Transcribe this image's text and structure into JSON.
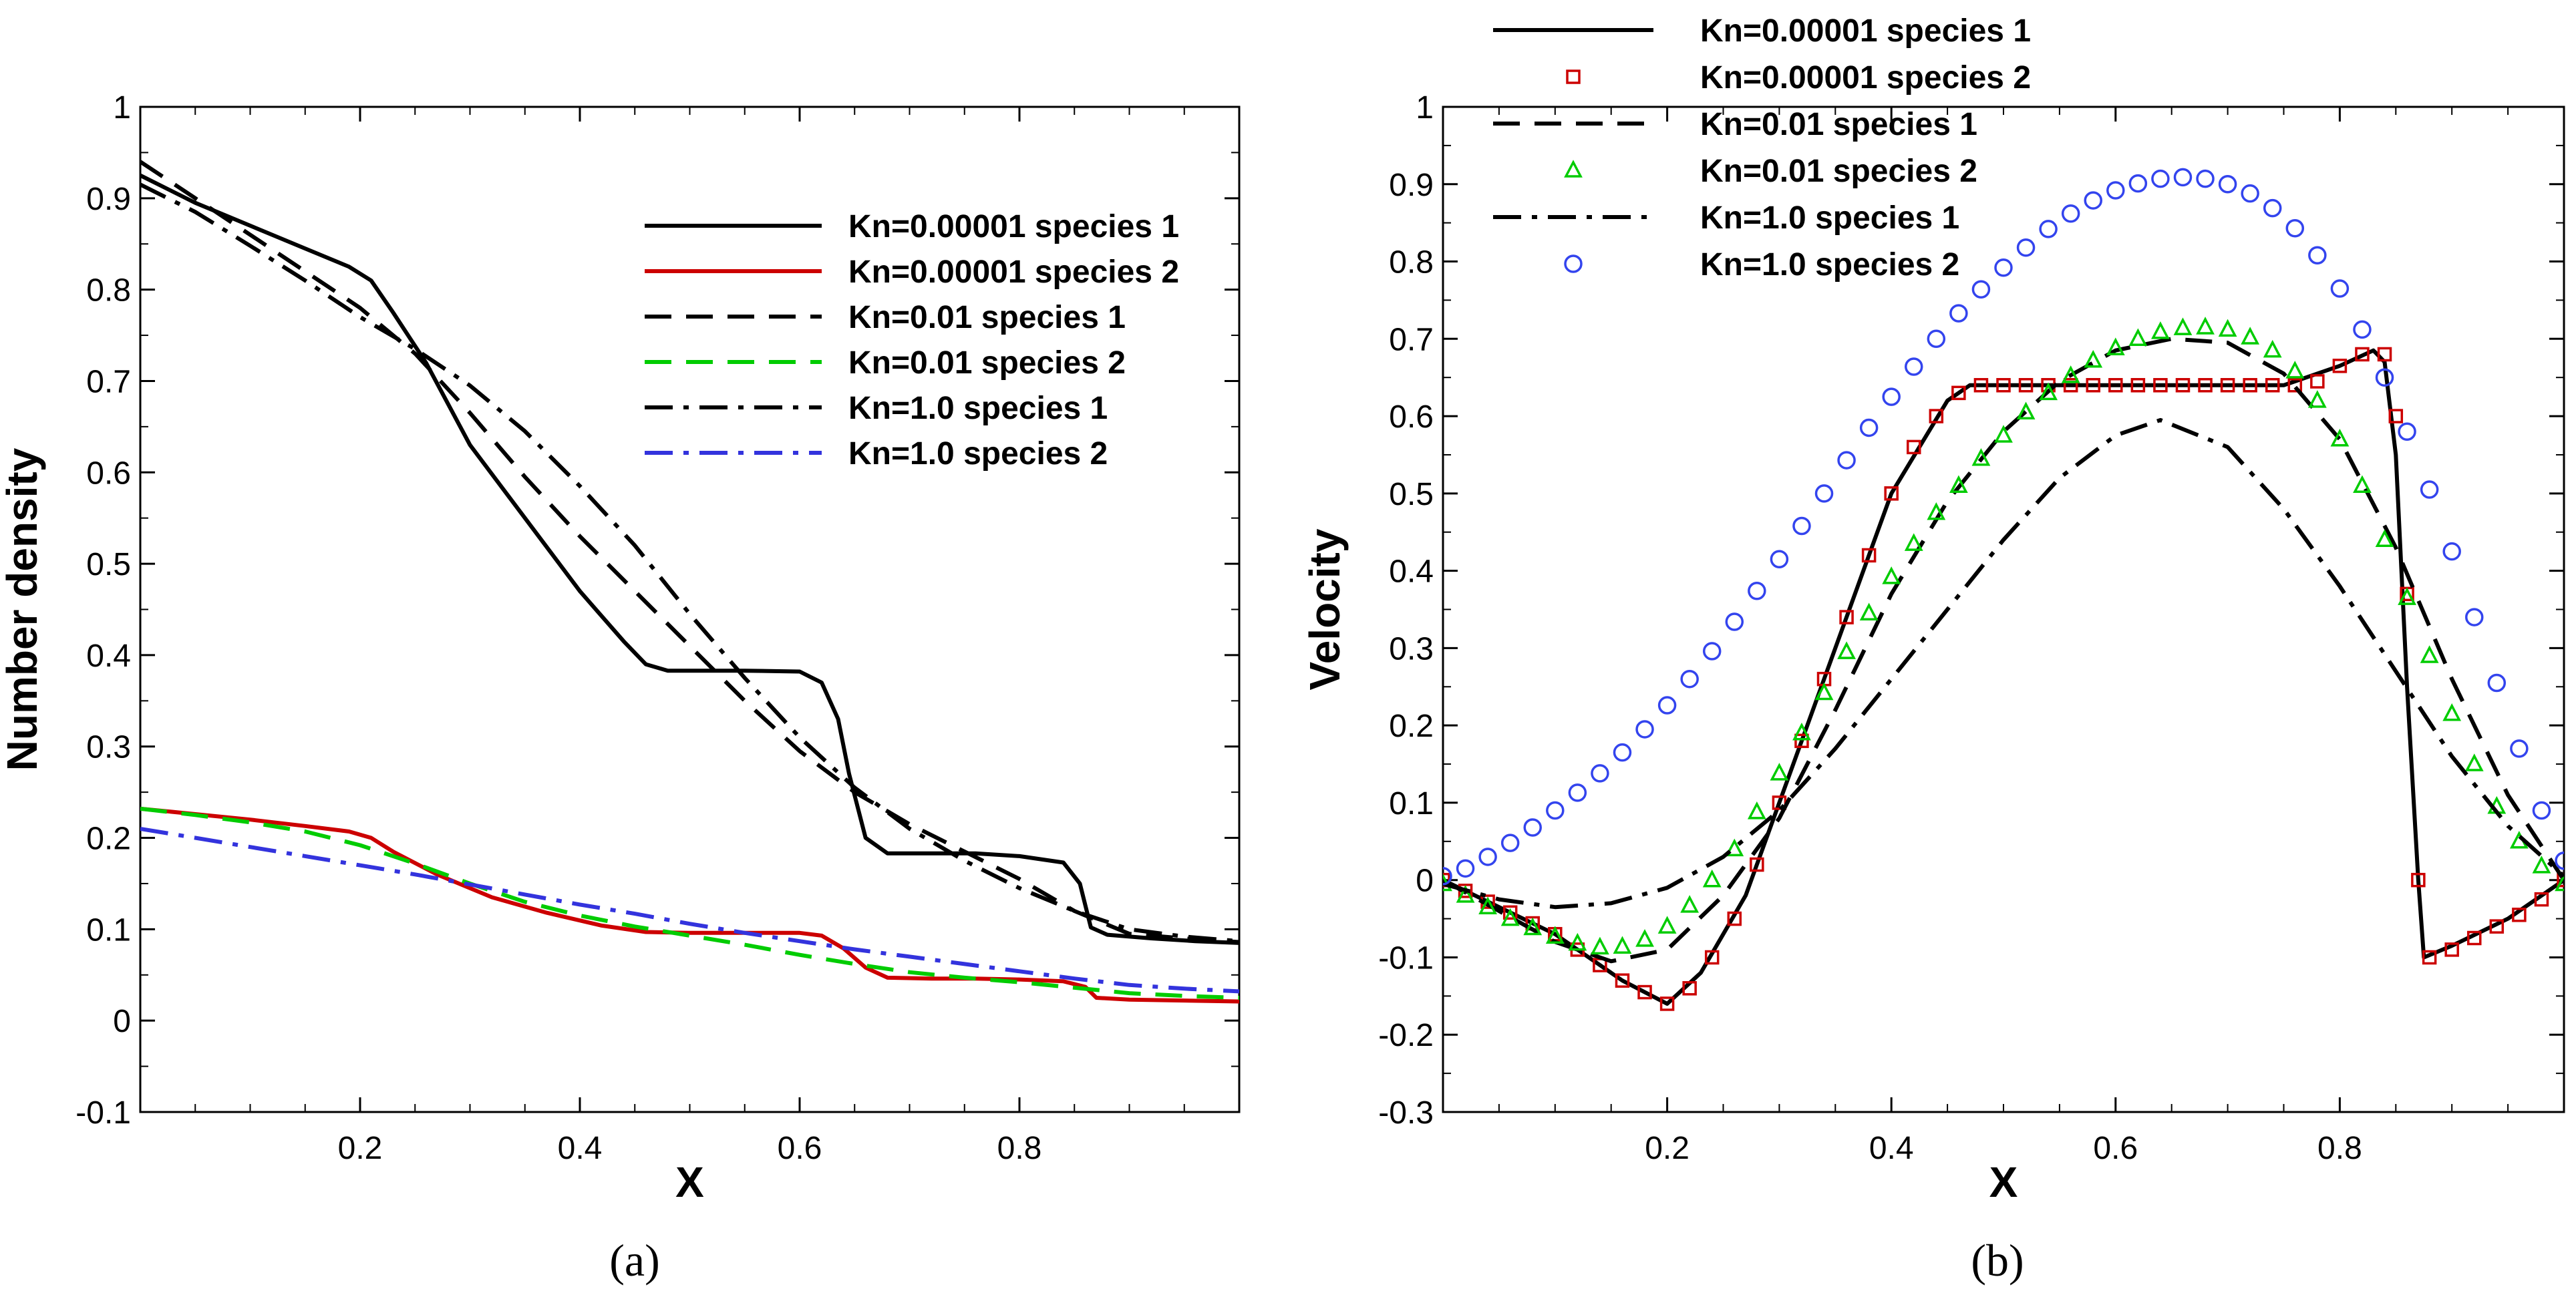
{
  "chart_data": [
    {
      "type": "line",
      "panel": "(a)",
      "caption": "(a)",
      "xlabel": "X",
      "ylabel": "Number density",
      "xlim": [
        0.0,
        1.0
      ],
      "ylim": [
        -0.1,
        1.0
      ],
      "xticks": [
        0.2,
        0.4,
        0.6,
        0.8
      ],
      "yticks": [
        -0.1,
        0,
        0.1,
        0.2,
        0.3,
        0.4,
        0.5,
        0.6,
        0.7,
        0.8,
        0.9,
        1
      ],
      "ytick_labels": [
        "-0.1",
        "0",
        "0.1",
        "0.2",
        "0.3",
        "0.4",
        "0.5",
        "0.6",
        "0.7",
        "0.8",
        "0.9",
        "1"
      ],
      "xtick_labels": [
        "0.2",
        "0.4",
        "0.6",
        "0.8"
      ],
      "legend_position": "top-right",
      "series": [
        {
          "name": "Kn=0.00001 species 1",
          "color": "#000000",
          "style": "solid",
          "x": [
            0.0,
            0.05,
            0.1,
            0.15,
            0.19,
            0.21,
            0.23,
            0.26,
            0.3,
            0.35,
            0.4,
            0.44,
            0.46,
            0.48,
            0.5,
            0.55,
            0.6,
            0.62,
            0.635,
            0.645,
            0.66,
            0.68,
            0.72,
            0.76,
            0.8,
            0.84,
            0.855,
            0.865,
            0.88,
            0.92,
            0.96,
            1.0
          ],
          "y": [
            0.925,
            0.895,
            0.87,
            0.845,
            0.825,
            0.81,
            0.775,
            0.72,
            0.63,
            0.55,
            0.47,
            0.415,
            0.39,
            0.383,
            0.383,
            0.383,
            0.382,
            0.37,
            0.33,
            0.27,
            0.2,
            0.183,
            0.183,
            0.183,
            0.18,
            0.173,
            0.15,
            0.102,
            0.094,
            0.09,
            0.087,
            0.085
          ]
        },
        {
          "name": "Kn=0.00001 species 2",
          "color": "#cc0000",
          "style": "solid",
          "x": [
            0.0,
            0.05,
            0.1,
            0.15,
            0.19,
            0.21,
            0.23,
            0.27,
            0.32,
            0.37,
            0.42,
            0.46,
            0.5,
            0.55,
            0.6,
            0.62,
            0.64,
            0.66,
            0.68,
            0.72,
            0.76,
            0.8,
            0.84,
            0.86,
            0.87,
            0.9,
            0.95,
            1.0
          ],
          "y": [
            0.232,
            0.226,
            0.22,
            0.213,
            0.207,
            0.2,
            0.185,
            0.16,
            0.135,
            0.118,
            0.104,
            0.097,
            0.096,
            0.096,
            0.096,
            0.093,
            0.079,
            0.058,
            0.047,
            0.046,
            0.046,
            0.045,
            0.043,
            0.037,
            0.025,
            0.023,
            0.022,
            0.021
          ]
        },
        {
          "name": "Kn=0.01 species 1",
          "color": "#000000",
          "style": "dashed",
          "x": [
            0.0,
            0.05,
            0.1,
            0.15,
            0.2,
            0.25,
            0.3,
            0.35,
            0.4,
            0.45,
            0.5,
            0.55,
            0.6,
            0.65,
            0.7,
            0.75,
            0.8,
            0.85,
            0.9,
            0.95,
            1.0
          ],
          "y": [
            0.94,
            0.9,
            0.86,
            0.82,
            0.78,
            0.73,
            0.665,
            0.595,
            0.53,
            0.47,
            0.41,
            0.35,
            0.295,
            0.25,
            0.215,
            0.185,
            0.155,
            0.12,
            0.095,
            0.09,
            0.086
          ]
        },
        {
          "name": "Kn=0.01 species 2",
          "color": "#00cc00",
          "style": "dashed",
          "x": [
            0.0,
            0.05,
            0.1,
            0.15,
            0.2,
            0.25,
            0.3,
            0.35,
            0.4,
            0.45,
            0.5,
            0.55,
            0.6,
            0.65,
            0.7,
            0.75,
            0.8,
            0.85,
            0.9,
            0.95,
            1.0
          ],
          "y": [
            0.232,
            0.225,
            0.217,
            0.207,
            0.192,
            0.172,
            0.15,
            0.13,
            0.115,
            0.103,
            0.093,
            0.083,
            0.072,
            0.062,
            0.053,
            0.047,
            0.042,
            0.036,
            0.03,
            0.027,
            0.025
          ]
        },
        {
          "name": "Kn=1.0 species 1",
          "color": "#000000",
          "style": "dashdot",
          "x": [
            0.0,
            0.05,
            0.1,
            0.15,
            0.2,
            0.25,
            0.3,
            0.35,
            0.4,
            0.45,
            0.5,
            0.55,
            0.6,
            0.65,
            0.7,
            0.75,
            0.8,
            0.85,
            0.9,
            0.95,
            1.0
          ],
          "y": [
            0.915,
            0.885,
            0.848,
            0.81,
            0.77,
            0.735,
            0.695,
            0.645,
            0.585,
            0.52,
            0.445,
            0.375,
            0.31,
            0.255,
            0.21,
            0.175,
            0.145,
            0.12,
            0.1,
            0.092,
            0.087
          ]
        },
        {
          "name": "Kn=1.0 species 2",
          "color": "#3333dd",
          "style": "dashdot",
          "x": [
            0.0,
            0.05,
            0.1,
            0.15,
            0.2,
            0.25,
            0.3,
            0.35,
            0.4,
            0.45,
            0.5,
            0.55,
            0.6,
            0.65,
            0.7,
            0.75,
            0.8,
            0.85,
            0.9,
            0.95,
            1.0
          ],
          "y": [
            0.21,
            0.2,
            0.19,
            0.18,
            0.17,
            0.16,
            0.149,
            0.138,
            0.127,
            0.117,
            0.106,
            0.096,
            0.087,
            0.078,
            0.07,
            0.062,
            0.054,
            0.046,
            0.039,
            0.035,
            0.032
          ]
        }
      ]
    },
    {
      "type": "line",
      "panel": "(b)",
      "caption": "(b)",
      "xlabel": "X",
      "ylabel": "Velocity",
      "xlim": [
        0.0,
        1.0
      ],
      "ylim": [
        -0.3,
        1.0
      ],
      "xticks": [
        0.2,
        0.4,
        0.6,
        0.8
      ],
      "yticks": [
        -0.3,
        -0.2,
        -0.1,
        0,
        0.1,
        0.2,
        0.3,
        0.4,
        0.5,
        0.6,
        0.7,
        0.8,
        0.9,
        1
      ],
      "ytick_labels": [
        "-0.3",
        "-0.2",
        "-0.1",
        "0",
        "0.1",
        "0.2",
        "0.3",
        "0.4",
        "0.5",
        "0.6",
        "0.7",
        "0.8",
        "0.9",
        "1"
      ],
      "xtick_labels": [
        "0.2",
        "0.4",
        "0.6",
        "0.8"
      ],
      "legend_position": "top-center",
      "series": [
        {
          "name": "Kn=0.00001 species 1",
          "color": "#000000",
          "style": "solid",
          "marker": "none",
          "x": [
            0.0,
            0.1,
            0.16,
            0.2,
            0.23,
            0.27,
            0.3,
            0.35,
            0.4,
            0.45,
            0.47,
            0.5,
            0.6,
            0.7,
            0.75,
            0.8,
            0.83,
            0.84,
            0.85,
            0.86,
            0.87,
            0.875,
            0.9,
            0.95,
            1.0
          ],
          "y": [
            0.0,
            -0.07,
            -0.13,
            -0.16,
            -0.12,
            -0.02,
            0.1,
            0.3,
            0.5,
            0.62,
            0.64,
            0.64,
            0.64,
            0.64,
            0.64,
            0.665,
            0.685,
            0.67,
            0.55,
            0.25,
            0.0,
            -0.1,
            -0.085,
            -0.05,
            0.0
          ]
        },
        {
          "name": "Kn=0.00001 species 2",
          "color": "#cc0000",
          "style": "none",
          "marker": "square",
          "x": [
            0.0,
            0.02,
            0.04,
            0.06,
            0.08,
            0.1,
            0.12,
            0.14,
            0.16,
            0.18,
            0.2,
            0.22,
            0.24,
            0.26,
            0.28,
            0.3,
            0.32,
            0.34,
            0.36,
            0.38,
            0.4,
            0.42,
            0.44,
            0.46,
            0.48,
            0.5,
            0.52,
            0.54,
            0.56,
            0.58,
            0.6,
            0.62,
            0.64,
            0.66,
            0.68,
            0.7,
            0.72,
            0.74,
            0.76,
            0.78,
            0.8,
            0.82,
            0.84,
            0.85,
            0.86,
            0.87,
            0.88,
            0.9,
            0.92,
            0.94,
            0.96,
            0.98,
            1.0
          ],
          "y": [
            0.0,
            -0.014,
            -0.028,
            -0.042,
            -0.056,
            -0.07,
            -0.09,
            -0.11,
            -0.13,
            -0.145,
            -0.16,
            -0.14,
            -0.1,
            -0.05,
            0.02,
            0.1,
            0.18,
            0.26,
            0.34,
            0.42,
            0.5,
            0.56,
            0.6,
            0.63,
            0.64,
            0.64,
            0.64,
            0.64,
            0.64,
            0.64,
            0.64,
            0.64,
            0.64,
            0.64,
            0.64,
            0.64,
            0.64,
            0.64,
            0.64,
            0.645,
            0.665,
            0.68,
            0.68,
            0.6,
            0.37,
            0.0,
            -0.1,
            -0.09,
            -0.075,
            -0.06,
            -0.045,
            -0.025,
            0.0
          ]
        },
        {
          "name": "Kn=0.01 species 1",
          "color": "#000000",
          "style": "dashed",
          "marker": "none",
          "x": [
            0.0,
            0.05,
            0.1,
            0.15,
            0.2,
            0.25,
            0.3,
            0.35,
            0.4,
            0.45,
            0.5,
            0.55,
            0.6,
            0.65,
            0.7,
            0.75,
            0.8,
            0.85,
            0.9,
            0.95,
            1.0
          ],
          "y": [
            0.0,
            -0.04,
            -0.08,
            -0.105,
            -0.09,
            -0.02,
            0.08,
            0.22,
            0.37,
            0.49,
            0.58,
            0.645,
            0.685,
            0.7,
            0.695,
            0.655,
            0.57,
            0.43,
            0.26,
            0.11,
            0.0
          ]
        },
        {
          "name": "Kn=0.01 species 2",
          "color": "#00cc00",
          "style": "none",
          "marker": "triangle",
          "x": [
            0.0,
            0.02,
            0.04,
            0.06,
            0.08,
            0.1,
            0.12,
            0.14,
            0.16,
            0.18,
            0.2,
            0.22,
            0.24,
            0.26,
            0.28,
            0.3,
            0.32,
            0.34,
            0.36,
            0.38,
            0.4,
            0.42,
            0.44,
            0.46,
            0.48,
            0.5,
            0.52,
            0.54,
            0.56,
            0.58,
            0.6,
            0.62,
            0.64,
            0.66,
            0.68,
            0.7,
            0.72,
            0.74,
            0.76,
            0.78,
            0.8,
            0.82,
            0.84,
            0.86,
            0.88,
            0.9,
            0.92,
            0.94,
            0.96,
            0.98,
            1.0
          ],
          "y": [
            -0.005,
            -0.02,
            -0.035,
            -0.05,
            -0.062,
            -0.073,
            -0.082,
            -0.087,
            -0.086,
            -0.077,
            -0.06,
            -0.033,
            0.0,
            0.04,
            0.088,
            0.138,
            0.19,
            0.242,
            0.295,
            0.345,
            0.392,
            0.435,
            0.475,
            0.51,
            0.545,
            0.575,
            0.605,
            0.63,
            0.652,
            0.672,
            0.688,
            0.7,
            0.709,
            0.714,
            0.715,
            0.712,
            0.702,
            0.685,
            0.658,
            0.62,
            0.57,
            0.51,
            0.44,
            0.365,
            0.29,
            0.215,
            0.15,
            0.095,
            0.05,
            0.018,
            -0.005
          ]
        },
        {
          "name": "Kn=1.0 species 1",
          "color": "#000000",
          "style": "dashdot",
          "marker": "none",
          "x": [
            0.0,
            0.05,
            0.1,
            0.15,
            0.2,
            0.25,
            0.3,
            0.35,
            0.4,
            0.45,
            0.5,
            0.55,
            0.6,
            0.64,
            0.7,
            0.75,
            0.8,
            0.85,
            0.9,
            0.95,
            1.0
          ],
          "y": [
            -0.005,
            -0.025,
            -0.035,
            -0.03,
            -0.01,
            0.03,
            0.09,
            0.17,
            0.26,
            0.35,
            0.44,
            0.52,
            0.575,
            0.595,
            0.56,
            0.48,
            0.38,
            0.27,
            0.16,
            0.07,
            0.005
          ]
        },
        {
          "name": "Kn=1.0 species 2",
          "color": "#3344ee",
          "style": "none",
          "marker": "circle",
          "x": [
            0.0,
            0.02,
            0.04,
            0.06,
            0.08,
            0.1,
            0.12,
            0.14,
            0.16,
            0.18,
            0.2,
            0.22,
            0.24,
            0.26,
            0.28,
            0.3,
            0.32,
            0.34,
            0.36,
            0.38,
            0.4,
            0.42,
            0.44,
            0.46,
            0.48,
            0.5,
            0.52,
            0.54,
            0.56,
            0.58,
            0.6,
            0.62,
            0.64,
            0.66,
            0.68,
            0.7,
            0.72,
            0.74,
            0.76,
            0.78,
            0.8,
            0.82,
            0.84,
            0.86,
            0.88,
            0.9,
            0.92,
            0.94,
            0.96,
            0.98,
            1.0
          ],
          "y": [
            0.005,
            0.015,
            0.03,
            0.048,
            0.068,
            0.09,
            0.113,
            0.138,
            0.165,
            0.195,
            0.226,
            0.26,
            0.296,
            0.334,
            0.374,
            0.415,
            0.458,
            0.5,
            0.543,
            0.585,
            0.625,
            0.664,
            0.7,
            0.733,
            0.764,
            0.792,
            0.818,
            0.842,
            0.862,
            0.879,
            0.892,
            0.901,
            0.907,
            0.909,
            0.907,
            0.9,
            0.888,
            0.869,
            0.843,
            0.808,
            0.765,
            0.712,
            0.65,
            0.58,
            0.505,
            0.425,
            0.34,
            0.255,
            0.17,
            0.09,
            0.025
          ]
        }
      ]
    }
  ]
}
